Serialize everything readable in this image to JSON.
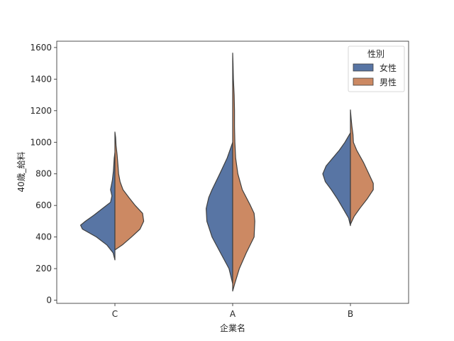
{
  "chart_data": {
    "type": "violin",
    "title": "",
    "xlabel": "企業名",
    "ylabel": "40歳_給料",
    "categories": [
      "C",
      "A",
      "B"
    ],
    "ylim": [
      -20,
      1640
    ],
    "yticks": [
      0,
      200,
      400,
      600,
      800,
      1000,
      1200,
      1400,
      1600
    ],
    "legend": {
      "title": "性別",
      "position": "top-right",
      "entries": [
        {
          "label": "女性",
          "color": "#5875a4"
        },
        {
          "label": "男性",
          "color": "#cc8963"
        }
      ]
    },
    "violins": [
      {
        "category": "C",
        "series": "女性",
        "color": "#5875a4",
        "min": 255,
        "max": 935,
        "profile": [
          [
            255,
            0.0
          ],
          [
            300,
            0.05
          ],
          [
            350,
            0.22
          ],
          [
            400,
            0.5
          ],
          [
            450,
            0.88
          ],
          [
            475,
            0.93
          ],
          [
            500,
            0.8
          ],
          [
            540,
            0.56
          ],
          [
            580,
            0.34
          ],
          [
            620,
            0.12
          ],
          [
            660,
            0.08
          ],
          [
            700,
            0.12
          ],
          [
            760,
            0.07
          ],
          [
            820,
            0.04
          ],
          [
            900,
            0.02
          ],
          [
            935,
            0.0
          ]
        ]
      },
      {
        "category": "C",
        "series": "男性",
        "color": "#cc8963",
        "min": 318,
        "max": 1065,
        "profile": [
          [
            318,
            0.0
          ],
          [
            350,
            0.2
          ],
          [
            400,
            0.45
          ],
          [
            450,
            0.68
          ],
          [
            500,
            0.78
          ],
          [
            550,
            0.75
          ],
          [
            600,
            0.55
          ],
          [
            650,
            0.38
          ],
          [
            700,
            0.22
          ],
          [
            750,
            0.14
          ],
          [
            800,
            0.1
          ],
          [
            860,
            0.08
          ],
          [
            920,
            0.06
          ],
          [
            980,
            0.03
          ],
          [
            1030,
            0.02
          ],
          [
            1065,
            0.0
          ]
        ]
      },
      {
        "category": "A",
        "series": "女性",
        "color": "#5875a4",
        "min": 105,
        "max": 1000,
        "profile": [
          [
            105,
            0.0
          ],
          [
            200,
            0.1
          ],
          [
            300,
            0.33
          ],
          [
            400,
            0.56
          ],
          [
            500,
            0.7
          ],
          [
            580,
            0.72
          ],
          [
            650,
            0.65
          ],
          [
            700,
            0.56
          ],
          [
            800,
            0.35
          ],
          [
            900,
            0.15
          ],
          [
            960,
            0.06
          ],
          [
            1000,
            0.0
          ]
        ]
      },
      {
        "category": "A",
        "series": "男性",
        "color": "#cc8963",
        "min": 58,
        "max": 1565,
        "profile": [
          [
            58,
            0.0
          ],
          [
            100,
            0.05
          ],
          [
            200,
            0.18
          ],
          [
            300,
            0.37
          ],
          [
            400,
            0.58
          ],
          [
            500,
            0.6
          ],
          [
            550,
            0.58
          ],
          [
            600,
            0.48
          ],
          [
            700,
            0.26
          ],
          [
            800,
            0.14
          ],
          [
            900,
            0.08
          ],
          [
            1000,
            0.06
          ],
          [
            1100,
            0.05
          ],
          [
            1200,
            0.05
          ],
          [
            1300,
            0.04
          ],
          [
            1400,
            0.02
          ],
          [
            1500,
            0.01
          ],
          [
            1565,
            0.0
          ]
        ]
      },
      {
        "category": "B",
        "series": "女性",
        "color": "#5875a4",
        "min": 472,
        "max": 1060,
        "profile": [
          [
            472,
            0.0
          ],
          [
            520,
            0.05
          ],
          [
            580,
            0.2
          ],
          [
            640,
            0.35
          ],
          [
            700,
            0.52
          ],
          [
            750,
            0.68
          ],
          [
            800,
            0.75
          ],
          [
            850,
            0.66
          ],
          [
            900,
            0.48
          ],
          [
            950,
            0.3
          ],
          [
            1000,
            0.15
          ],
          [
            1060,
            0.0
          ]
        ]
      },
      {
        "category": "B",
        "series": "男性",
        "color": "#cc8963",
        "min": 480,
        "max": 1205,
        "profile": [
          [
            480,
            0.0
          ],
          [
            530,
            0.1
          ],
          [
            580,
            0.25
          ],
          [
            640,
            0.45
          ],
          [
            700,
            0.62
          ],
          [
            740,
            0.62
          ],
          [
            800,
            0.5
          ],
          [
            870,
            0.36
          ],
          [
            950,
            0.17
          ],
          [
            1000,
            0.08
          ],
          [
            1050,
            0.07
          ],
          [
            1100,
            0.04
          ],
          [
            1150,
            0.02
          ],
          [
            1205,
            0.0
          ]
        ]
      }
    ]
  }
}
